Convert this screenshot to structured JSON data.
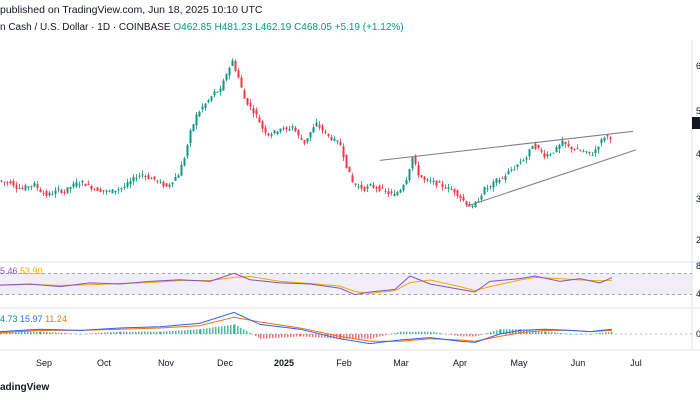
{
  "header": {
    "published": "published on TradingView.com, Jun 18, 2025 10:10 UTC",
    "symbol": "n Cash / U.S. Dollar · 1D · COINBASE",
    "open": "O462.85",
    "high": "H481.23",
    "low": "L462.19",
    "close": "C468.05",
    "change": "+5.19 (+1.12%)"
  },
  "rsi_label": {
    "v1": "5.46",
    "v2": "53.90"
  },
  "macd_label": {
    "v1": "4.73",
    "v2": "15.97",
    "v3": "11.24"
  },
  "footer": {
    "brand": "adingView"
  },
  "colors": {
    "up": "#089981",
    "down": "#f23645",
    "rsi": "#7e57c2",
    "rsi_ma": "#f7a600",
    "macd": "#2962ff",
    "signal": "#ff6d00"
  },
  "chart_data": {
    "type": "candlestick",
    "x_ticks": [
      "Sep",
      "Oct",
      "Nov",
      "Dec",
      "2025",
      "Feb",
      "Mar",
      "Apr",
      "May",
      "Jun",
      "Jul"
    ],
    "y_ticks_right": [
      "6",
      "5",
      "4",
      "3",
      "2"
    ],
    "ylim": [
      180,
      700
    ],
    "price_path": [
      [
        0,
        365
      ],
      [
        6,
        360
      ],
      [
        12,
        362
      ],
      [
        18,
        350
      ],
      [
        24,
        345
      ],
      [
        30,
        352
      ],
      [
        36,
        355
      ],
      [
        42,
        340
      ],
      [
        48,
        330
      ],
      [
        54,
        335
      ],
      [
        60,
        342
      ],
      [
        66,
        338
      ],
      [
        72,
        350
      ],
      [
        78,
        358
      ],
      [
        84,
        360
      ],
      [
        90,
        352
      ],
      [
        96,
        345
      ],
      [
        102,
        342
      ],
      [
        108,
        338
      ],
      [
        114,
        340
      ],
      [
        120,
        345
      ],
      [
        126,
        350
      ],
      [
        132,
        362
      ],
      [
        138,
        375
      ],
      [
        144,
        380
      ],
      [
        150,
        372
      ],
      [
        156,
        368
      ],
      [
        162,
        358
      ],
      [
        168,
        350
      ],
      [
        174,
        365
      ],
      [
        180,
        380
      ],
      [
        186,
        420
      ],
      [
        192,
        480
      ],
      [
        198,
        520
      ],
      [
        204,
        540
      ],
      [
        210,
        555
      ],
      [
        216,
        575
      ],
      [
        222,
        580
      ],
      [
        228,
        620
      ],
      [
        234,
        650
      ],
      [
        240,
        610
      ],
      [
        246,
        560
      ],
      [
        252,
        540
      ],
      [
        258,
        520
      ],
      [
        264,
        490
      ],
      [
        270,
        475
      ],
      [
        276,
        480
      ],
      [
        282,
        490
      ],
      [
        288,
        485
      ],
      [
        294,
        495
      ],
      [
        300,
        470
      ],
      [
        306,
        455
      ],
      [
        312,
        480
      ],
      [
        318,
        500
      ],
      [
        324,
        485
      ],
      [
        330,
        470
      ],
      [
        336,
        460
      ],
      [
        342,
        450
      ],
      [
        348,
        400
      ],
      [
        354,
        360
      ],
      [
        360,
        350
      ],
      [
        366,
        345
      ],
      [
        372,
        352
      ],
      [
        378,
        348
      ],
      [
        384,
        342
      ],
      [
        390,
        335
      ],
      [
        396,
        330
      ],
      [
        402,
        345
      ],
      [
        408,
        370
      ],
      [
        414,
        420
      ],
      [
        420,
        380
      ],
      [
        426,
        365
      ],
      [
        432,
        362
      ],
      [
        438,
        358
      ],
      [
        444,
        352
      ],
      [
        450,
        345
      ],
      [
        456,
        340
      ],
      [
        462,
        325
      ],
      [
        468,
        310
      ],
      [
        474,
        300
      ],
      [
        480,
        320
      ],
      [
        486,
        345
      ],
      [
        492,
        350
      ],
      [
        498,
        365
      ],
      [
        504,
        370
      ],
      [
        510,
        385
      ],
      [
        516,
        395
      ],
      [
        522,
        410
      ],
      [
        528,
        420
      ],
      [
        534,
        450
      ],
      [
        540,
        440
      ],
      [
        546,
        425
      ],
      [
        552,
        430
      ],
      [
        558,
        440
      ],
      [
        564,
        455
      ],
      [
        570,
        445
      ],
      [
        576,
        440
      ],
      [
        582,
        435
      ],
      [
        588,
        430
      ],
      [
        594,
        428
      ],
      [
        600,
        450
      ],
      [
        606,
        470
      ],
      [
        612,
        468
      ]
    ],
    "wedge_upper": [
      [
        380,
        413
      ],
      [
        633,
        482
      ]
    ],
    "wedge_lower": [
      [
        466,
        303
      ],
      [
        636,
        438
      ]
    ],
    "rsi_path": [
      [
        0,
        48
      ],
      [
        30,
        50
      ],
      [
        60,
        45
      ],
      [
        90,
        52
      ],
      [
        120,
        50
      ],
      [
        150,
        55
      ],
      [
        180,
        58
      ],
      [
        210,
        55
      ],
      [
        234,
        70
      ],
      [
        250,
        58
      ],
      [
        280,
        52
      ],
      [
        310,
        50
      ],
      [
        340,
        42
      ],
      [
        355,
        30
      ],
      [
        370,
        35
      ],
      [
        395,
        40
      ],
      [
        410,
        65
      ],
      [
        430,
        50
      ],
      [
        460,
        40
      ],
      [
        475,
        35
      ],
      [
        490,
        55
      ],
      [
        520,
        60
      ],
      [
        535,
        65
      ],
      [
        560,
        55
      ],
      [
        580,
        60
      ],
      [
        600,
        52
      ],
      [
        612,
        62
      ]
    ],
    "macd_path": [
      [
        0,
        2
      ],
      [
        40,
        4
      ],
      [
        80,
        3
      ],
      [
        120,
        5
      ],
      [
        160,
        6
      ],
      [
        200,
        9
      ],
      [
        234,
        18
      ],
      [
        260,
        8
      ],
      [
        300,
        4
      ],
      [
        340,
        -4
      ],
      [
        370,
        -8
      ],
      [
        400,
        -5
      ],
      [
        430,
        -3
      ],
      [
        460,
        -6
      ],
      [
        475,
        -7
      ],
      [
        500,
        0
      ],
      [
        520,
        3
      ],
      [
        545,
        4
      ],
      [
        570,
        3
      ],
      [
        590,
        2
      ],
      [
        612,
        4
      ]
    ],
    "signal_path": [
      [
        0,
        1
      ],
      [
        40,
        3
      ],
      [
        80,
        3
      ],
      [
        120,
        4
      ],
      [
        160,
        5
      ],
      [
        200,
        7
      ],
      [
        234,
        14
      ],
      [
        260,
        10
      ],
      [
        300,
        5
      ],
      [
        340,
        -2
      ],
      [
        370,
        -6
      ],
      [
        400,
        -6
      ],
      [
        430,
        -4
      ],
      [
        460,
        -5
      ],
      [
        475,
        -6
      ],
      [
        500,
        -2
      ],
      [
        520,
        1
      ],
      [
        545,
        3
      ],
      [
        570,
        3
      ],
      [
        590,
        2
      ],
      [
        612,
        3
      ]
    ]
  }
}
